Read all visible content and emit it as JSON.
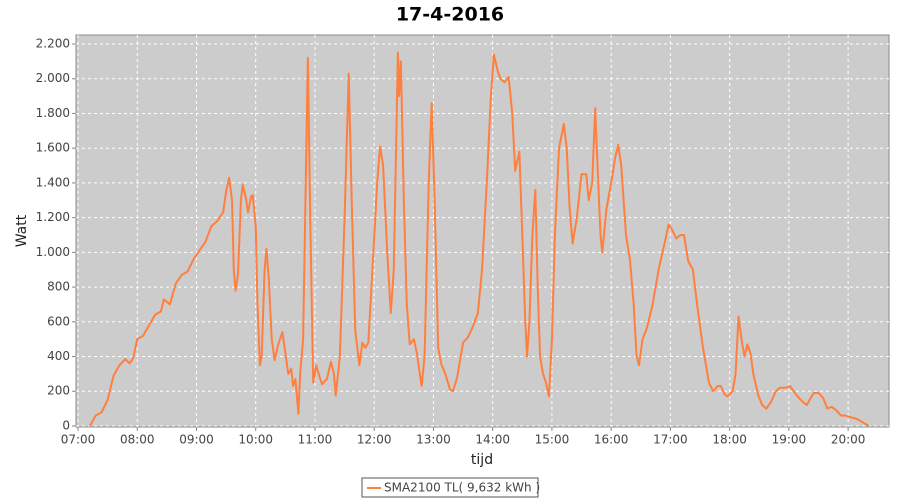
{
  "chart_data": {
    "type": "line",
    "title": "17-4-2016",
    "x_label": "tijd",
    "y_label": "Watt",
    "xlim": [
      6.966,
      20.69
    ],
    "ylim": [
      -6,
      2252
    ],
    "xticks": [
      {
        "value": 7,
        "label": "07:00"
      },
      {
        "value": 8,
        "label": "08:00"
      },
      {
        "value": 9,
        "label": "09:00"
      },
      {
        "value": 10,
        "label": "10:00"
      },
      {
        "value": 11,
        "label": "11:00"
      },
      {
        "value": 12,
        "label": "12:00"
      },
      {
        "value": 13,
        "label": "13:00"
      },
      {
        "value": 14,
        "label": "14:00"
      },
      {
        "value": 15,
        "label": "15:00"
      },
      {
        "value": 16,
        "label": "16:00"
      },
      {
        "value": 17,
        "label": "17:00"
      },
      {
        "value": 18,
        "label": "18:00"
      },
      {
        "value": 19,
        "label": "19:00"
      },
      {
        "value": 20,
        "label": "20:00"
      }
    ],
    "yticks": [
      0,
      200,
      400,
      600,
      800,
      {
        "value": 1000,
        "label": "1.000"
      },
      {
        "value": 1200,
        "label": "1.200"
      },
      {
        "value": 1400,
        "label": "1.400"
      },
      {
        "value": 1600,
        "label": "1.600"
      },
      {
        "value": 1800,
        "label": "1.800"
      },
      {
        "value": 2000,
        "label": "2.000"
      },
      {
        "value": 2200,
        "label": "2.200"
      }
    ],
    "grid": true,
    "legend": "bottom",
    "x": [
      7.2,
      7.3,
      7.4,
      7.5,
      7.6,
      7.7,
      7.8,
      7.87,
      7.93,
      8.0,
      8.1,
      8.2,
      8.3,
      8.4,
      8.45,
      8.55,
      8.65,
      8.75,
      8.85,
      8.95,
      9.05,
      9.15,
      9.25,
      9.35,
      9.45,
      9.5,
      9.55,
      9.6,
      9.63,
      9.66,
      9.7,
      9.75,
      9.78,
      9.83,
      9.87,
      9.92,
      9.95,
      10.0,
      10.03,
      10.07,
      10.1,
      10.15,
      10.18,
      10.22,
      10.27,
      10.32,
      10.38,
      10.45,
      10.5,
      10.55,
      10.6,
      10.63,
      10.67,
      10.72,
      10.75,
      10.8,
      10.88,
      10.92,
      10.97,
      11.02,
      11.08,
      11.12,
      11.2,
      11.27,
      11.32,
      11.35,
      11.42,
      11.5,
      11.57,
      11.62,
      11.68,
      11.75,
      11.8,
      11.85,
      11.9,
      11.97,
      12.05,
      12.1,
      12.15,
      12.22,
      12.28,
      12.33,
      12.4,
      12.42,
      12.45,
      12.5,
      12.55,
      12.6,
      12.67,
      12.72,
      12.8,
      12.85,
      12.92,
      12.97,
      13.02,
      13.08,
      13.13,
      13.2,
      13.28,
      13.33,
      13.4,
      13.5,
      13.58,
      13.65,
      13.75,
      13.82,
      13.9,
      13.97,
      14.02,
      14.08,
      14.13,
      14.2,
      14.27,
      14.33,
      14.38,
      14.45,
      14.5,
      14.55,
      14.58,
      14.62,
      14.67,
      14.72,
      14.76,
      14.8,
      14.85,
      14.9,
      14.95,
      15.0,
      15.05,
      15.12,
      15.2,
      15.25,
      15.3,
      15.35,
      15.42,
      15.5,
      15.58,
      15.62,
      15.68,
      15.73,
      15.77,
      15.82,
      15.85,
      15.92,
      16.0,
      16.07,
      16.12,
      16.17,
      16.25,
      16.32,
      16.38,
      16.43,
      16.47,
      16.53,
      16.6,
      16.7,
      16.8,
      16.9,
      16.97,
      17.03,
      17.1,
      17.17,
      17.23,
      17.3,
      17.38,
      17.45,
      17.55,
      17.65,
      17.72,
      17.8,
      17.85,
      17.92,
      17.97,
      18.05,
      18.1,
      18.15,
      18.2,
      18.25,
      18.3,
      18.35,
      18.4,
      18.48,
      18.55,
      18.62,
      18.7,
      18.78,
      18.85,
      18.95,
      19.02,
      19.1,
      19.2,
      19.3,
      19.35,
      19.42,
      19.5,
      19.58,
      19.65,
      19.72,
      19.8,
      19.88,
      19.95,
      20.05,
      20.15,
      20.25,
      20.35
    ],
    "series": [
      {
        "name": "SMA2100 TL( 9,632 kWh )",
        "color": "#ff7f3f",
        "values": [
          0,
          60,
          80,
          150,
          290,
          350,
          385,
          360,
          390,
          500,
          520,
          580,
          640,
          660,
          730,
          700,
          820,
          870,
          890,
          960,
          1010,
          1060,
          1150,
          1180,
          1230,
          1350,
          1430,
          1300,
          900,
          780,
          870,
          1300,
          1390,
          1320,
          1230,
          1320,
          1330,
          1150,
          700,
          350,
          400,
          900,
          1020,
          850,
          500,
          380,
          470,
          540,
          420,
          300,
          330,
          230,
          270,
          70,
          300,
          500,
          2120,
          1200,
          250,
          350,
          280,
          240,
          270,
          370,
          300,
          175,
          400,
          1200,
          2030,
          1300,
          550,
          350,
          480,
          450,
          480,
          900,
          1400,
          1610,
          1500,
          1000,
          650,
          900,
          2150,
          1900,
          2100,
          1300,
          700,
          470,
          500,
          420,
          230,
          400,
          1400,
          1860,
          1300,
          450,
          360,
          300,
          210,
          200,
          280,
          480,
          510,
          560,
          650,
          900,
          1400,
          1900,
          2140,
          2050,
          2000,
          1980,
          2010,
          1800,
          1470,
          1580,
          1100,
          600,
          400,
          600,
          1100,
          1360,
          800,
          400,
          300,
          250,
          170,
          500,
          1100,
          1600,
          1740,
          1600,
          1250,
          1050,
          1200,
          1450,
          1450,
          1300,
          1400,
          1830,
          1500,
          1100,
          1000,
          1250,
          1400,
          1550,
          1620,
          1500,
          1100,
          950,
          700,
          400,
          350,
          500,
          560,
          700,
          900,
          1050,
          1160,
          1130,
          1080,
          1100,
          1100,
          950,
          900,
          700,
          450,
          250,
          200,
          230,
          230,
          180,
          170,
          200,
          300,
          630,
          500,
          400,
          470,
          420,
          300,
          180,
          120,
          100,
          140,
          200,
          220,
          220,
          230,
          190,
          150,
          120,
          150,
          190,
          190,
          160,
          100,
          110,
          90,
          60,
          60,
          50,
          40,
          20,
          0
        ]
      }
    ]
  }
}
